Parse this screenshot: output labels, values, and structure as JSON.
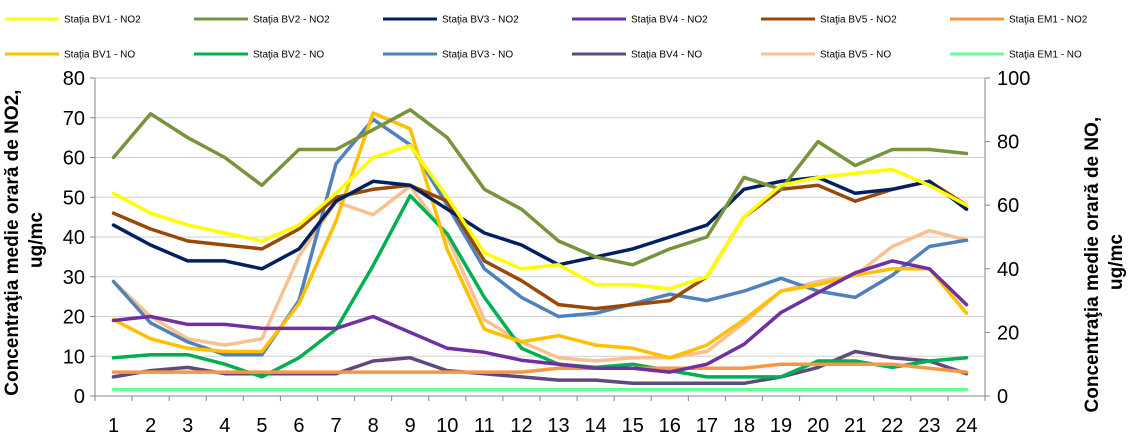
{
  "chart_data": {
    "type": "line",
    "title": "",
    "xlabel": "",
    "ylabel_left": "Concentraţia medie orară de NO2, ug/mc",
    "ylabel_left_lines": [
      "Concentraţia medie orară de NO2,",
      "ug/mc"
    ],
    "ylabel_right": "Concentraţia medie orară de NO, ug/mc",
    "ylabel_right_lines": [
      "Concentraţia medie orară de NO,",
      "ug/mc"
    ],
    "y_left_range": [
      0,
      80
    ],
    "y_right_range": [
      0,
      100
    ],
    "y_left_ticks": [
      "0",
      "10",
      "20",
      "30",
      "40",
      "50",
      "60",
      "70",
      "80"
    ],
    "y_right_ticks": [
      "0",
      "20",
      "40",
      "60",
      "80",
      "100"
    ],
    "grid": "horizontal",
    "legend_position": "top",
    "categories": [
      "1",
      "2",
      "3",
      "4",
      "5",
      "6",
      "7",
      "8",
      "9",
      "10",
      "11",
      "12",
      "13",
      "14",
      "15",
      "16",
      "17",
      "18",
      "19",
      "20",
      "21",
      "22",
      "23",
      "24"
    ],
    "series": [
      {
        "name": "Staţia BV1 - NO2",
        "axis": "left",
        "color": "#ffff00",
        "values": [
          51,
          46,
          43,
          41,
          39,
          43,
          51,
          60,
          63,
          50,
          36,
          32,
          33,
          28,
          28,
          27,
          30,
          45,
          53,
          55,
          56,
          57,
          53,
          48
        ]
      },
      {
        "name": "Staţia BV2 - NO2",
        "axis": "left",
        "color": "#77933c",
        "values": [
          60,
          71,
          65,
          60,
          53,
          62,
          62,
          67,
          72,
          65,
          52,
          47,
          39,
          35,
          33,
          37,
          40,
          55,
          52,
          64,
          58,
          62,
          62,
          61
        ]
      },
      {
        "name": "Staţia BV3 - NO2",
        "axis": "left",
        "color": "#002060",
        "values": [
          43,
          38,
          34,
          34,
          32,
          37,
          49,
          54,
          53,
          47,
          41,
          38,
          33,
          35,
          37,
          40,
          43,
          52,
          54,
          55,
          51,
          52,
          54,
          47
        ]
      },
      {
        "name": "Staţia BV4 - NO2",
        "axis": "left",
        "color": "#7030a0",
        "values": [
          19,
          20,
          18,
          18,
          17,
          17,
          17,
          20,
          16,
          12,
          11,
          9,
          8,
          7,
          7,
          6,
          8,
          13,
          21,
          26,
          31,
          34,
          32,
          23
        ]
      },
      {
        "name": "Staţia BV5 - NO2",
        "axis": "left",
        "color": "#984807",
        "values": [
          46,
          42,
          39,
          38,
          37,
          42,
          50,
          52,
          53,
          49,
          34,
          29,
          23,
          22,
          23,
          24,
          30,
          45,
          52,
          53,
          49,
          52,
          54,
          48
        ]
      },
      {
        "name": "Staţia EM1 - NO2",
        "axis": "left",
        "color": "#f79646",
        "values": [
          6,
          6,
          6,
          6,
          6,
          6,
          6,
          6,
          6,
          6,
          6,
          6,
          7,
          7,
          7,
          7,
          7,
          7,
          8,
          8,
          8,
          8,
          7,
          6
        ]
      },
      {
        "name": "Staţia BV1 - NO",
        "axis": "right",
        "color": "#ffc000",
        "values": [
          24,
          18,
          15,
          14,
          14,
          29,
          55,
          89,
          84,
          46,
          21,
          17,
          19,
          16,
          15,
          12,
          16,
          24,
          33,
          35,
          38,
          40,
          40,
          26
        ]
      },
      {
        "name": "Staţia BV2 - NO",
        "axis": "right",
        "color": "#00b050",
        "values": [
          12,
          13,
          13,
          10,
          6,
          12,
          21,
          41,
          63,
          51,
          31,
          15,
          10,
          9,
          10,
          8,
          6,
          6,
          6,
          11,
          11,
          9,
          11,
          12
        ]
      },
      {
        "name": "Staţia BV3 - NO",
        "axis": "right",
        "color": "#4f81bd",
        "values": [
          36,
          23,
          17,
          13,
          13,
          30,
          73,
          87,
          79,
          60,
          40,
          31,
          25,
          26,
          29,
          32,
          30,
          33,
          37,
          33,
          31,
          38,
          47,
          49
        ]
      },
      {
        "name": "Staţia BV4 - NO",
        "axis": "right",
        "color": "#604a7b",
        "values": [
          6,
          8,
          9,
          7,
          7,
          7,
          7,
          11,
          12,
          8,
          7,
          6,
          5,
          5,
          4,
          4,
          4,
          4,
          6,
          9,
          14,
          12,
          11,
          7
        ]
      },
      {
        "name": "Staţia BV5 - NO",
        "axis": "right",
        "color": "#fac090",
        "values": [
          36,
          25,
          18,
          16,
          18,
          44,
          61,
          57,
          66,
          50,
          24,
          17,
          12,
          11,
          12,
          12,
          14,
          23,
          33,
          36,
          38,
          47,
          52,
          49
        ]
      },
      {
        "name": "Staţia EM1 - NO",
        "axis": "right",
        "color": "#66ff99",
        "values": [
          2,
          2,
          2,
          2,
          2,
          2,
          2,
          2,
          2,
          2,
          2,
          2,
          2,
          2,
          2,
          2,
          2,
          2,
          2,
          2,
          2,
          2,
          2,
          2
        ]
      }
    ]
  }
}
